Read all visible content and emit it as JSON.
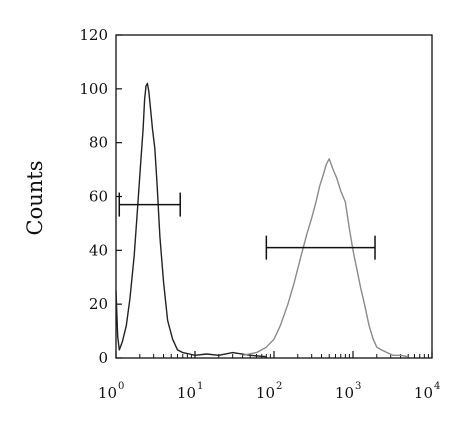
{
  "chart_data": {
    "type": "line",
    "title": "",
    "xlabel": "",
    "ylabel": "Counts",
    "x_scale": "log",
    "xlim": [
      1,
      10000
    ],
    "ylim": [
      0,
      120
    ],
    "x_ticks": [
      {
        "value": 1,
        "base": "10",
        "exp": "0"
      },
      {
        "value": 10,
        "base": "10",
        "exp": "1"
      },
      {
        "value": 100,
        "base": "10",
        "exp": "2"
      },
      {
        "value": 1000,
        "base": "10",
        "exp": "3"
      },
      {
        "value": 10000,
        "base": "10",
        "exp": "4"
      }
    ],
    "y_ticks": [
      0,
      20,
      40,
      60,
      80,
      100,
      120
    ],
    "grid": false,
    "legend": "none",
    "series": [
      {
        "color": "#222222",
        "x": [
          1,
          1.05,
          1.1,
          1.2,
          1.35,
          1.5,
          1.7,
          1.9,
          2.05,
          2.2,
          2.3,
          2.4,
          2.5,
          2.6,
          2.75,
          2.9,
          3.1,
          3.3,
          3.6,
          4.0,
          4.5,
          5.2,
          6.0,
          7.0,
          8.5,
          10,
          14,
          20,
          30,
          50,
          80
        ],
        "y": [
          25,
          8,
          3,
          6,
          12,
          22,
          38,
          58,
          72,
          85,
          96,
          101,
          102,
          99,
          92,
          85,
          78,
          65,
          45,
          28,
          14,
          7,
          3,
          2,
          1.5,
          1,
          1.5,
          1,
          2,
          1,
          0.5
        ]
      },
      {
        "color": "#8a8a8a",
        "x": [
          40,
          60,
          80,
          100,
          120,
          150,
          180,
          220,
          260,
          300,
          340,
          380,
          420,
          460,
          500,
          560,
          620,
          700,
          800,
          900,
          1000,
          1100,
          1250,
          1400,
          1600,
          1800,
          2000,
          2300,
          2700,
          3200,
          4000,
          5000
        ],
        "y": [
          1,
          2,
          4,
          7,
          12,
          20,
          28,
          38,
          46,
          52,
          58,
          64,
          68,
          72,
          74,
          70,
          67,
          62,
          58,
          48,
          40,
          34,
          26,
          20,
          12,
          7,
          4,
          3,
          2,
          1,
          1,
          0.5
        ]
      }
    ],
    "markers": [
      {
        "x_start": 1.1,
        "x_end": 6.5,
        "y": 57
      },
      {
        "x_start": 80,
        "x_end": 1900,
        "y": 41
      }
    ]
  }
}
